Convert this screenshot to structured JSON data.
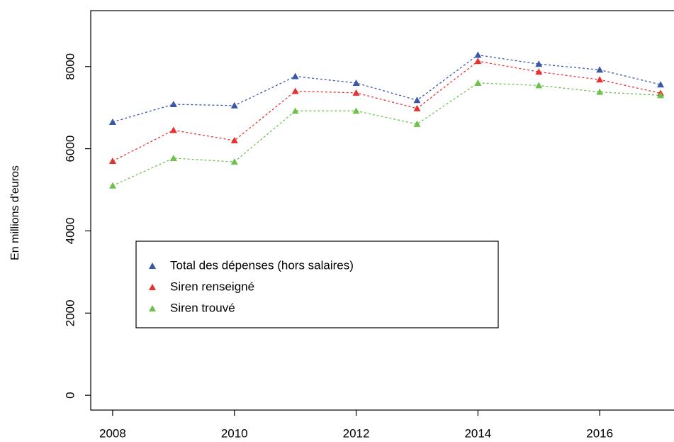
{
  "chart_data": {
    "type": "line",
    "y_label": "En millions d'euros",
    "x": [
      2008,
      2009,
      2010,
      2011,
      2012,
      2013,
      2014,
      2015,
      2016,
      2017
    ],
    "series": [
      {
        "name": "Total des dépenses (hors salaires)",
        "color": "#3b58a8",
        "values": [
          6650,
          7080,
          7050,
          7760,
          7600,
          7180,
          8280,
          8060,
          7920,
          7560
        ]
      },
      {
        "name": "Siren renseigné",
        "color": "#e8302e",
        "values": [
          5700,
          6450,
          6200,
          7400,
          7360,
          6980,
          8130,
          7870,
          7680,
          7350
        ]
      },
      {
        "name": "Siren trouvé",
        "color": "#6cc24a",
        "values": [
          5100,
          5770,
          5680,
          6920,
          6920,
          6600,
          7600,
          7540,
          7380,
          7300
        ]
      }
    ],
    "xlim": [
      2007.64,
      2017.36
    ],
    "xticks": [
      2008,
      2010,
      2012,
      2014,
      2016
    ],
    "ylim": [
      -360,
      9360
    ],
    "yticks": [
      0,
      2000,
      4000,
      6000,
      8000
    ],
    "legend": "bottom-left"
  }
}
